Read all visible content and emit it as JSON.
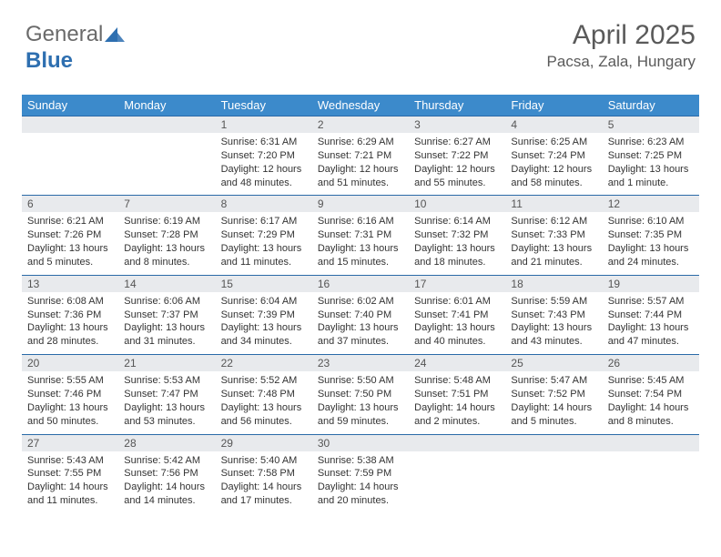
{
  "brand": {
    "part1": "General",
    "part2": "Blue"
  },
  "header": {
    "title": "April 2025",
    "location": "Pacsa, Zala, Hungary"
  },
  "colors": {
    "header_bg": "#3c8acb",
    "daynum_bg": "#e8eaed",
    "week_border": "#2a6aa8",
    "text": "#333333",
    "title_text": "#5a5a5a"
  },
  "dayNames": [
    "Sunday",
    "Monday",
    "Tuesday",
    "Wednesday",
    "Thursday",
    "Friday",
    "Saturday"
  ],
  "weeks": [
    [
      {
        "empty": true
      },
      {
        "empty": true
      },
      {
        "day": "1",
        "sunrise": "Sunrise: 6:31 AM",
        "sunset": "Sunset: 7:20 PM",
        "daylight": "Daylight: 12 hours and 48 minutes."
      },
      {
        "day": "2",
        "sunrise": "Sunrise: 6:29 AM",
        "sunset": "Sunset: 7:21 PM",
        "daylight": "Daylight: 12 hours and 51 minutes."
      },
      {
        "day": "3",
        "sunrise": "Sunrise: 6:27 AM",
        "sunset": "Sunset: 7:22 PM",
        "daylight": "Daylight: 12 hours and 55 minutes."
      },
      {
        "day": "4",
        "sunrise": "Sunrise: 6:25 AM",
        "sunset": "Sunset: 7:24 PM",
        "daylight": "Daylight: 12 hours and 58 minutes."
      },
      {
        "day": "5",
        "sunrise": "Sunrise: 6:23 AM",
        "sunset": "Sunset: 7:25 PM",
        "daylight": "Daylight: 13 hours and 1 minute."
      }
    ],
    [
      {
        "day": "6",
        "sunrise": "Sunrise: 6:21 AM",
        "sunset": "Sunset: 7:26 PM",
        "daylight": "Daylight: 13 hours and 5 minutes."
      },
      {
        "day": "7",
        "sunrise": "Sunrise: 6:19 AM",
        "sunset": "Sunset: 7:28 PM",
        "daylight": "Daylight: 13 hours and 8 minutes."
      },
      {
        "day": "8",
        "sunrise": "Sunrise: 6:17 AM",
        "sunset": "Sunset: 7:29 PM",
        "daylight": "Daylight: 13 hours and 11 minutes."
      },
      {
        "day": "9",
        "sunrise": "Sunrise: 6:16 AM",
        "sunset": "Sunset: 7:31 PM",
        "daylight": "Daylight: 13 hours and 15 minutes."
      },
      {
        "day": "10",
        "sunrise": "Sunrise: 6:14 AM",
        "sunset": "Sunset: 7:32 PM",
        "daylight": "Daylight: 13 hours and 18 minutes."
      },
      {
        "day": "11",
        "sunrise": "Sunrise: 6:12 AM",
        "sunset": "Sunset: 7:33 PM",
        "daylight": "Daylight: 13 hours and 21 minutes."
      },
      {
        "day": "12",
        "sunrise": "Sunrise: 6:10 AM",
        "sunset": "Sunset: 7:35 PM",
        "daylight": "Daylight: 13 hours and 24 minutes."
      }
    ],
    [
      {
        "day": "13",
        "sunrise": "Sunrise: 6:08 AM",
        "sunset": "Sunset: 7:36 PM",
        "daylight": "Daylight: 13 hours and 28 minutes."
      },
      {
        "day": "14",
        "sunrise": "Sunrise: 6:06 AM",
        "sunset": "Sunset: 7:37 PM",
        "daylight": "Daylight: 13 hours and 31 minutes."
      },
      {
        "day": "15",
        "sunrise": "Sunrise: 6:04 AM",
        "sunset": "Sunset: 7:39 PM",
        "daylight": "Daylight: 13 hours and 34 minutes."
      },
      {
        "day": "16",
        "sunrise": "Sunrise: 6:02 AM",
        "sunset": "Sunset: 7:40 PM",
        "daylight": "Daylight: 13 hours and 37 minutes."
      },
      {
        "day": "17",
        "sunrise": "Sunrise: 6:01 AM",
        "sunset": "Sunset: 7:41 PM",
        "daylight": "Daylight: 13 hours and 40 minutes."
      },
      {
        "day": "18",
        "sunrise": "Sunrise: 5:59 AM",
        "sunset": "Sunset: 7:43 PM",
        "daylight": "Daylight: 13 hours and 43 minutes."
      },
      {
        "day": "19",
        "sunrise": "Sunrise: 5:57 AM",
        "sunset": "Sunset: 7:44 PM",
        "daylight": "Daylight: 13 hours and 47 minutes."
      }
    ],
    [
      {
        "day": "20",
        "sunrise": "Sunrise: 5:55 AM",
        "sunset": "Sunset: 7:46 PM",
        "daylight": "Daylight: 13 hours and 50 minutes."
      },
      {
        "day": "21",
        "sunrise": "Sunrise: 5:53 AM",
        "sunset": "Sunset: 7:47 PM",
        "daylight": "Daylight: 13 hours and 53 minutes."
      },
      {
        "day": "22",
        "sunrise": "Sunrise: 5:52 AM",
        "sunset": "Sunset: 7:48 PM",
        "daylight": "Daylight: 13 hours and 56 minutes."
      },
      {
        "day": "23",
        "sunrise": "Sunrise: 5:50 AM",
        "sunset": "Sunset: 7:50 PM",
        "daylight": "Daylight: 13 hours and 59 minutes."
      },
      {
        "day": "24",
        "sunrise": "Sunrise: 5:48 AM",
        "sunset": "Sunset: 7:51 PM",
        "daylight": "Daylight: 14 hours and 2 minutes."
      },
      {
        "day": "25",
        "sunrise": "Sunrise: 5:47 AM",
        "sunset": "Sunset: 7:52 PM",
        "daylight": "Daylight: 14 hours and 5 minutes."
      },
      {
        "day": "26",
        "sunrise": "Sunrise: 5:45 AM",
        "sunset": "Sunset: 7:54 PM",
        "daylight": "Daylight: 14 hours and 8 minutes."
      }
    ],
    [
      {
        "day": "27",
        "sunrise": "Sunrise: 5:43 AM",
        "sunset": "Sunset: 7:55 PM",
        "daylight": "Daylight: 14 hours and 11 minutes."
      },
      {
        "day": "28",
        "sunrise": "Sunrise: 5:42 AM",
        "sunset": "Sunset: 7:56 PM",
        "daylight": "Daylight: 14 hours and 14 minutes."
      },
      {
        "day": "29",
        "sunrise": "Sunrise: 5:40 AM",
        "sunset": "Sunset: 7:58 PM",
        "daylight": "Daylight: 14 hours and 17 minutes."
      },
      {
        "day": "30",
        "sunrise": "Sunrise: 5:38 AM",
        "sunset": "Sunset: 7:59 PM",
        "daylight": "Daylight: 14 hours and 20 minutes."
      },
      {
        "empty": true
      },
      {
        "empty": true
      },
      {
        "empty": true
      }
    ]
  ]
}
